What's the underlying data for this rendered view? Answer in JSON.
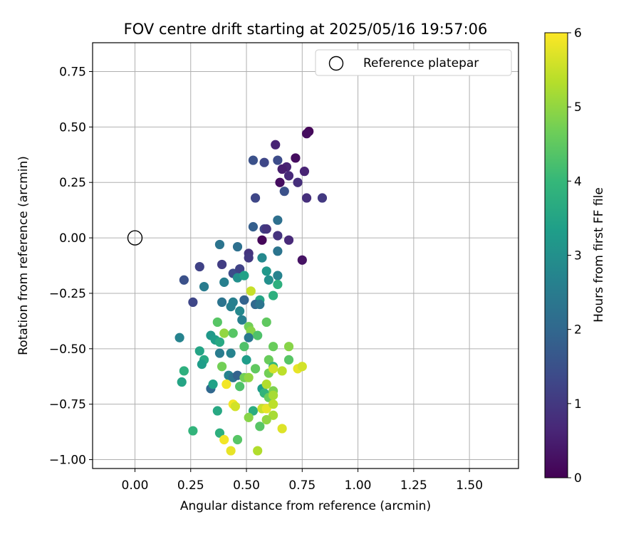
{
  "chart_data": {
    "type": "scatter",
    "title": "FOV centre drift starting at 2025/05/16 19:57:06",
    "xlabel": "Angular distance from reference (arcmin)",
    "ylabel": "Rotation from reference (arcmin)",
    "xlim": [
      -0.19,
      1.72
    ],
    "ylim": [
      -1.04,
      0.88
    ],
    "xticks": [
      0.0,
      0.25,
      0.5,
      0.75,
      1.0,
      1.25,
      1.5
    ],
    "xtick_labels": [
      "0.00",
      "0.25",
      "0.50",
      "0.75",
      "1.00",
      "1.25",
      "1.50"
    ],
    "yticks": [
      -1.0,
      -0.75,
      -0.5,
      -0.25,
      0.0,
      0.25,
      0.5,
      0.75
    ],
    "ytick_labels": [
      "−1.00",
      "−0.75",
      "−0.50",
      "−0.25",
      "0.00",
      "0.25",
      "0.50",
      "0.75"
    ],
    "grid": true,
    "legend": {
      "placement": "top-right",
      "entries": [
        "Reference platepar"
      ]
    },
    "reference_point": {
      "x": 0.0,
      "y": 0.0,
      "marker": "open-circle"
    },
    "colorbar": {
      "label": "Hours from first FF file",
      "range": [
        0,
        6
      ],
      "ticks": [
        0,
        1,
        2,
        3,
        4,
        5,
        6
      ],
      "colormap": "viridis",
      "stops": [
        "#440154",
        "#482878",
        "#3e4989",
        "#31688e",
        "#26828e",
        "#1f9e89",
        "#35b779",
        "#6ece58",
        "#b5de2b",
        "#fde725"
      ]
    },
    "points": [
      {
        "x": 0.78,
        "y": 0.48,
        "h": 0.1
      },
      {
        "x": 0.77,
        "y": 0.47,
        "h": 0.2
      },
      {
        "x": 0.72,
        "y": 0.36,
        "h": 0.2
      },
      {
        "x": 0.63,
        "y": 0.42,
        "h": 0.6
      },
      {
        "x": 0.68,
        "y": 0.32,
        "h": 0.6
      },
      {
        "x": 0.66,
        "y": 0.31,
        "h": 0.5
      },
      {
        "x": 0.69,
        "y": 0.28,
        "h": 0.7
      },
      {
        "x": 0.73,
        "y": 0.25,
        "h": 0.8
      },
      {
        "x": 0.76,
        "y": 0.3,
        "h": 0.6
      },
      {
        "x": 0.65,
        "y": 0.25,
        "h": 0.2
      },
      {
        "x": 0.64,
        "y": 0.35,
        "h": 1.4
      },
      {
        "x": 0.58,
        "y": 0.34,
        "h": 1.3
      },
      {
        "x": 0.53,
        "y": 0.35,
        "h": 1.5
      },
      {
        "x": 0.67,
        "y": 0.21,
        "h": 1.5
      },
      {
        "x": 0.77,
        "y": 0.18,
        "h": 0.8
      },
      {
        "x": 0.84,
        "y": 0.18,
        "h": 1.0
      },
      {
        "x": 0.54,
        "y": 0.18,
        "h": 1.3
      },
      {
        "x": 0.64,
        "y": 0.08,
        "h": 2.2
      },
      {
        "x": 0.53,
        "y": 0.05,
        "h": 1.8
      },
      {
        "x": 0.58,
        "y": 0.04,
        "h": 1.2
      },
      {
        "x": 0.59,
        "y": 0.04,
        "h": 0.9
      },
      {
        "x": 0.64,
        "y": 0.01,
        "h": 0.9
      },
      {
        "x": 0.69,
        "y": -0.01,
        "h": 0.7
      },
      {
        "x": 0.57,
        "y": -0.01,
        "h": 0.1
      },
      {
        "x": 0.38,
        "y": -0.03,
        "h": 2.3
      },
      {
        "x": 0.46,
        "y": -0.04,
        "h": 2.2
      },
      {
        "x": 0.51,
        "y": -0.07,
        "h": 0.9
      },
      {
        "x": 0.51,
        "y": -0.09,
        "h": 1.0
      },
      {
        "x": 0.64,
        "y": -0.06,
        "h": 2.3
      },
      {
        "x": 0.57,
        "y": -0.09,
        "h": 2.8
      },
      {
        "x": 0.75,
        "y": -0.1,
        "h": 0.3
      },
      {
        "x": 0.29,
        "y": -0.13,
        "h": 1.2
      },
      {
        "x": 0.39,
        "y": -0.12,
        "h": 1.1
      },
      {
        "x": 0.44,
        "y": -0.16,
        "h": 1.4
      },
      {
        "x": 0.47,
        "y": -0.14,
        "h": 1.2
      },
      {
        "x": 0.59,
        "y": -0.15,
        "h": 3.2
      },
      {
        "x": 0.64,
        "y": -0.17,
        "h": 2.7
      },
      {
        "x": 0.22,
        "y": -0.19,
        "h": 1.5
      },
      {
        "x": 0.4,
        "y": -0.2,
        "h": 2.6
      },
      {
        "x": 0.46,
        "y": -0.18,
        "h": 3.0
      },
      {
        "x": 0.49,
        "y": -0.17,
        "h": 3.4
      },
      {
        "x": 0.6,
        "y": -0.19,
        "h": 3.0
      },
      {
        "x": 0.64,
        "y": -0.21,
        "h": 3.8
      },
      {
        "x": 0.31,
        "y": -0.22,
        "h": 2.5
      },
      {
        "x": 0.26,
        "y": -0.29,
        "h": 1.3
      },
      {
        "x": 0.39,
        "y": -0.29,
        "h": 2.3
      },
      {
        "x": 0.44,
        "y": -0.29,
        "h": 2.6
      },
      {
        "x": 0.49,
        "y": -0.28,
        "h": 1.9
      },
      {
        "x": 0.52,
        "y": -0.24,
        "h": 5.5
      },
      {
        "x": 0.56,
        "y": -0.28,
        "h": 3.5
      },
      {
        "x": 0.62,
        "y": -0.26,
        "h": 3.8
      },
      {
        "x": 0.43,
        "y": -0.31,
        "h": 2.6
      },
      {
        "x": 0.47,
        "y": -0.33,
        "h": 2.8
      },
      {
        "x": 0.54,
        "y": -0.3,
        "h": 2.0
      },
      {
        "x": 0.56,
        "y": -0.3,
        "h": 2.3
      },
      {
        "x": 0.48,
        "y": -0.37,
        "h": 2.6
      },
      {
        "x": 0.37,
        "y": -0.38,
        "h": 4.4
      },
      {
        "x": 0.59,
        "y": -0.38,
        "h": 4.5
      },
      {
        "x": 0.2,
        "y": -0.45,
        "h": 2.7
      },
      {
        "x": 0.34,
        "y": -0.44,
        "h": 3.2
      },
      {
        "x": 0.36,
        "y": -0.46,
        "h": 3.3
      },
      {
        "x": 0.38,
        "y": -0.47,
        "h": 3.6
      },
      {
        "x": 0.4,
        "y": -0.43,
        "h": 5.0
      },
      {
        "x": 0.44,
        "y": -0.43,
        "h": 4.4
      },
      {
        "x": 0.51,
        "y": -0.4,
        "h": 4.7
      },
      {
        "x": 0.52,
        "y": -0.42,
        "h": 4.9
      },
      {
        "x": 0.51,
        "y": -0.45,
        "h": 2.4
      },
      {
        "x": 0.55,
        "y": -0.44,
        "h": 4.3
      },
      {
        "x": 0.29,
        "y": -0.51,
        "h": 3.5
      },
      {
        "x": 0.38,
        "y": -0.52,
        "h": 2.5
      },
      {
        "x": 0.43,
        "y": -0.52,
        "h": 2.7
      },
      {
        "x": 0.49,
        "y": -0.49,
        "h": 4.3
      },
      {
        "x": 0.5,
        "y": -0.55,
        "h": 3.3
      },
      {
        "x": 0.62,
        "y": -0.49,
        "h": 4.6
      },
      {
        "x": 0.69,
        "y": -0.49,
        "h": 4.9
      },
      {
        "x": 0.31,
        "y": -0.55,
        "h": 3.6
      },
      {
        "x": 0.3,
        "y": -0.57,
        "h": 3.3
      },
      {
        "x": 0.39,
        "y": -0.58,
        "h": 4.7
      },
      {
        "x": 0.54,
        "y": -0.59,
        "h": 4.5
      },
      {
        "x": 0.6,
        "y": -0.55,
        "h": 4.6
      },
      {
        "x": 0.62,
        "y": -0.58,
        "h": 4.0
      },
      {
        "x": 0.69,
        "y": -0.55,
        "h": 4.4
      },
      {
        "x": 0.73,
        "y": -0.59,
        "h": 5.8
      },
      {
        "x": 0.75,
        "y": -0.58,
        "h": 5.6
      },
      {
        "x": 0.22,
        "y": -0.6,
        "h": 3.8
      },
      {
        "x": 0.21,
        "y": -0.65,
        "h": 3.5
      },
      {
        "x": 0.42,
        "y": -0.62,
        "h": 2.7
      },
      {
        "x": 0.44,
        "y": -0.63,
        "h": 2.3
      },
      {
        "x": 0.46,
        "y": -0.62,
        "h": 1.9
      },
      {
        "x": 0.49,
        "y": -0.63,
        "h": 4.7
      },
      {
        "x": 0.51,
        "y": -0.63,
        "h": 5.0
      },
      {
        "x": 0.6,
        "y": -0.61,
        "h": 4.7
      },
      {
        "x": 0.62,
        "y": -0.59,
        "h": 5.6
      },
      {
        "x": 0.66,
        "y": -0.6,
        "h": 5.4
      },
      {
        "x": 0.34,
        "y": -0.68,
        "h": 2.0
      },
      {
        "x": 0.35,
        "y": -0.66,
        "h": 3.4
      },
      {
        "x": 0.41,
        "y": -0.66,
        "h": 5.9
      },
      {
        "x": 0.47,
        "y": -0.67,
        "h": 4.3
      },
      {
        "x": 0.57,
        "y": -0.68,
        "h": 3.3
      },
      {
        "x": 0.58,
        "y": -0.7,
        "h": 3.9
      },
      {
        "x": 0.59,
        "y": -0.66,
        "h": 5.3
      },
      {
        "x": 0.6,
        "y": -0.72,
        "h": 4.6
      },
      {
        "x": 0.62,
        "y": -0.69,
        "h": 4.8
      },
      {
        "x": 0.62,
        "y": -0.71,
        "h": 5.2
      },
      {
        "x": 0.37,
        "y": -0.78,
        "h": 3.6
      },
      {
        "x": 0.44,
        "y": -0.75,
        "h": 5.9
      },
      {
        "x": 0.45,
        "y": -0.76,
        "h": 5.6
      },
      {
        "x": 0.53,
        "y": -0.78,
        "h": 3.7
      },
      {
        "x": 0.57,
        "y": -0.77,
        "h": 5.5
      },
      {
        "x": 0.59,
        "y": -0.77,
        "h": 5.8
      },
      {
        "x": 0.62,
        "y": -0.75,
        "h": 5.4
      },
      {
        "x": 0.62,
        "y": -0.8,
        "h": 5.2
      },
      {
        "x": 0.51,
        "y": -0.81,
        "h": 4.9
      },
      {
        "x": 0.59,
        "y": -0.82,
        "h": 5.0
      },
      {
        "x": 0.56,
        "y": -0.85,
        "h": 4.4
      },
      {
        "x": 0.66,
        "y": -0.86,
        "h": 5.7
      },
      {
        "x": 0.26,
        "y": -0.87,
        "h": 3.9
      },
      {
        "x": 0.38,
        "y": -0.88,
        "h": 3.8
      },
      {
        "x": 0.4,
        "y": -0.91,
        "h": 5.9
      },
      {
        "x": 0.46,
        "y": -0.91,
        "h": 4.4
      },
      {
        "x": 0.55,
        "y": -0.96,
        "h": 5.3
      },
      {
        "x": 0.43,
        "y": -0.96,
        "h": 5.8
      }
    ]
  }
}
